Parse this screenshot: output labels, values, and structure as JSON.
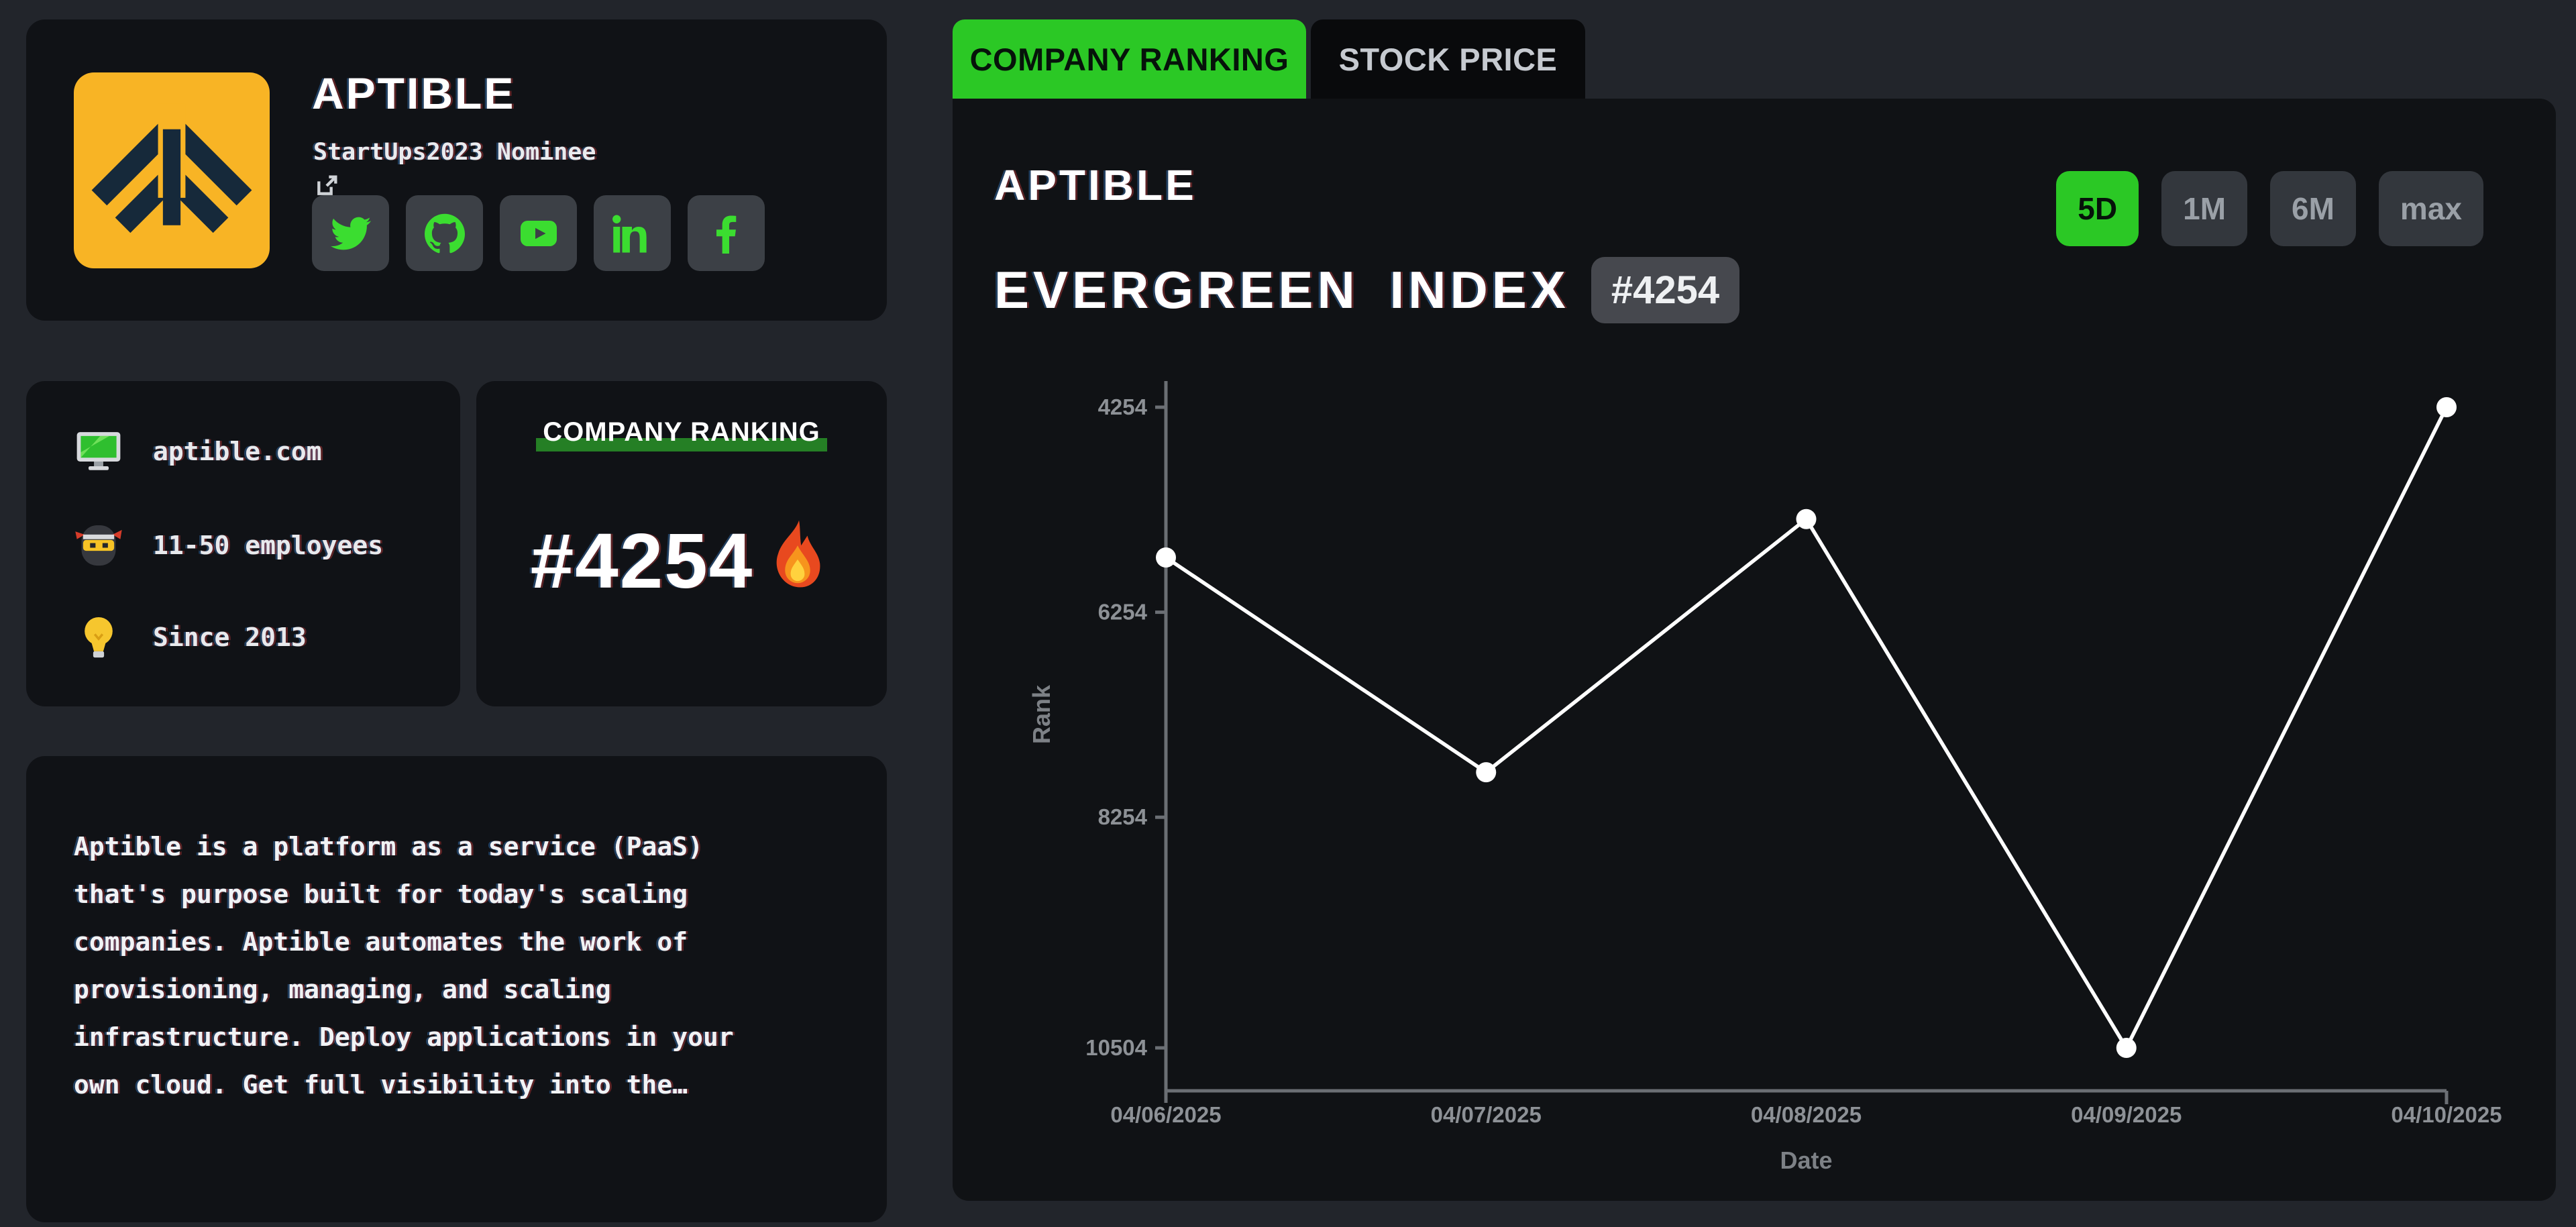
{
  "brand": {
    "name": "APTIBLE",
    "subtitle": "StartUps2023 Nominee",
    "logo_bg": "#f8b425",
    "logo_mark": "#16293a",
    "social_links": [
      "twitter",
      "github",
      "youtube",
      "linkedin",
      "facebook"
    ]
  },
  "facts": [
    {
      "icon": "monitor-icon",
      "text": "aptible.com"
    },
    {
      "icon": "ninja-icon",
      "text": "11-50 employees"
    },
    {
      "icon": "lightbulb-icon",
      "text": "Since 2013"
    }
  ],
  "ranking_card": {
    "title": "COMPANY RANKING",
    "rank": "#4254",
    "icon": "fire-icon"
  },
  "description": "Aptible is a platform as a service (PaaS) that's purpose built for today's scaling companies. Aptible automates the work of provisioning, managing, and scaling infrastructure. Deploy applications in your own cloud. Get full visibility into the…",
  "tabs": [
    {
      "label": "COMPANY RANKING",
      "active": true
    },
    {
      "label": "STOCK PRICE",
      "active": false
    }
  ],
  "chart_header": {
    "company": "APTIBLE",
    "index_title": "EVERGREEN INDEX",
    "index_badge": "#4254",
    "ranges": [
      {
        "label": "5D",
        "active": true
      },
      {
        "label": "1M",
        "active": false
      },
      {
        "label": "6M",
        "active": false
      },
      {
        "label": "max",
        "active": false
      }
    ]
  },
  "chart_data": {
    "type": "line",
    "x": [
      "04/06/2025",
      "04/07/2025",
      "04/08/2025",
      "04/09/2025",
      "04/10/2025"
    ],
    "values": [
      5720,
      7815,
      5345,
      10504,
      4254
    ],
    "xlabel": "Date",
    "ylabel": "Rank",
    "yticks": [
      4254,
      6254,
      8254,
      10504
    ],
    "ylim": [
      4254,
      10504
    ],
    "y_inverted": true,
    "grid": false,
    "legend": false,
    "line_color": "#ffffff",
    "marker": "circle"
  },
  "colors": {
    "page_bg": "#22252b",
    "card_bg": "#101216",
    "accent_green": "#2bc825",
    "icon_green": "#3bdd30",
    "highlight_green": "#257f25",
    "logo_yellow": "#f8b425",
    "logo_navy": "#16293a",
    "badge_bg": "#46484e",
    "axis_gray": "#6b6f74"
  }
}
